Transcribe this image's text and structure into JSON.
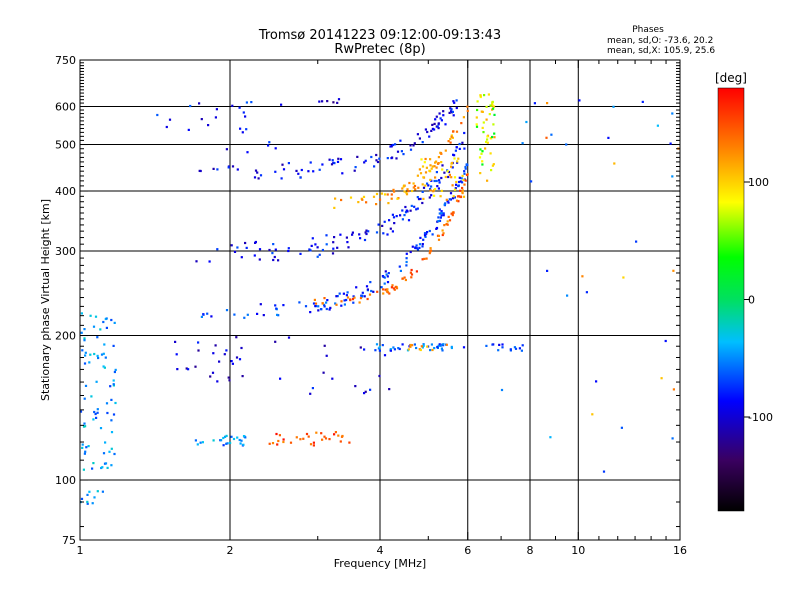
{
  "header": {
    "title_line1": "Tromsø 20141223 09:12:00-09:13:43",
    "title_line2": "RwPretec (8p)"
  },
  "phases_box": {
    "heading": "Phases",
    "line_o": "mean, sd,O: -73.6, 20.2",
    "line_x": "mean, sd,X: 105.9, 25.6"
  },
  "colorbar": {
    "unit_label": "[deg]",
    "ticks": [
      {
        "value": 100,
        "label": "100"
      },
      {
        "value": 0,
        "label": "0"
      },
      {
        "value": -100,
        "label": "-100"
      }
    ],
    "range": [
      -180,
      180
    ]
  },
  "chart_data": {
    "type": "scatter",
    "title": "Tromsø 20141223 09:12:00-09:13:43",
    "subtitle": "RwPretec (8p)",
    "xlabel": "Frequency [MHz]",
    "ylabel": "Stationary phase Virtual Height [km]",
    "x_scale": "log",
    "y_scale": "log",
    "xlim": [
      1,
      16
    ],
    "ylim": [
      75,
      750
    ],
    "x_ticks": [
      {
        "value": 1,
        "label": "1"
      },
      {
        "value": 2,
        "label": "2"
      },
      {
        "value": 4,
        "label": "4"
      },
      {
        "value": 6,
        "label": "6"
      },
      {
        "value": 8,
        "label": "8"
      },
      {
        "value": 10,
        "label": "10"
      },
      {
        "value": 16,
        "label": "16"
      }
    ],
    "y_ticks": [
      {
        "value": 75,
        "label": "75"
      },
      {
        "value": 100,
        "label": "100"
      },
      {
        "value": 200,
        "label": "200"
      },
      {
        "value": 300,
        "label": "300"
      },
      {
        "value": 400,
        "label": "400"
      },
      {
        "value": 500,
        "label": "500"
      },
      {
        "value": 600,
        "label": "600"
      },
      {
        "value": 750,
        "label": "750"
      }
    ],
    "x_grid": [
      2,
      4,
      6,
      8,
      10
    ],
    "y_grid": [
      100,
      200,
      300,
      400,
      500,
      600
    ],
    "color_encodes": "phase [deg]",
    "traces": [
      {
        "x0": 1.7,
        "x1": 6.0,
        "h0": 225,
        "h1": 450,
        "phase": -75,
        "spread": 0.035,
        "n": 140
      },
      {
        "x0": 2.9,
        "x1": 6.0,
        "h0": 235,
        "h1": 430,
        "phase": 140,
        "spread": 0.02,
        "n": 80
      },
      {
        "x0": 1.7,
        "x1": 6.0,
        "h0": 300,
        "h1": 520,
        "phase": -85,
        "spread": 0.05,
        "n": 120
      },
      {
        "x0": 1.7,
        "x1": 5.8,
        "h0": 440,
        "h1": 620,
        "phase": -90,
        "spread": 0.04,
        "n": 100
      },
      {
        "x0": 3.2,
        "x1": 6.0,
        "h0": 380,
        "h1": 600,
        "phase": 120,
        "spread": 0.03,
        "n": 70
      }
    ],
    "clusters": [
      {
        "x": [
          1.0,
          1.18
        ],
        "y": [
          105,
          225
        ],
        "phase": -45,
        "n": 80
      },
      {
        "x": [
          1.0,
          1.12
        ],
        "y": [
          88,
          95
        ],
        "phase": -40,
        "n": 10
      },
      {
        "x": [
          1.7,
          2.2
        ],
        "y": [
          118,
          124
        ],
        "phase": -50,
        "n": 25
      },
      {
        "x": [
          2.4,
          3.5
        ],
        "y": [
          118,
          126
        ],
        "phase": 150,
        "n": 30
      },
      {
        "x": [
          1.5,
          2.2
        ],
        "y": [
          160,
          205
        ],
        "phase": -100,
        "n": 25
      },
      {
        "x": [
          3.9,
          5.9
        ],
        "y": [
          186,
          192
        ],
        "phase": -60,
        "n": 40
      },
      {
        "x": [
          4.5,
          5.5
        ],
        "y": [
          186,
          192
        ],
        "phase": 110,
        "n": 10
      },
      {
        "x": [
          6.5,
          7.8
        ],
        "y": [
          186,
          192
        ],
        "phase": -75,
        "n": 14
      },
      {
        "x": [
          2.4,
          4.2
        ],
        "y": [
          150,
          200
        ],
        "phase": -95,
        "n": 18
      },
      {
        "x": [
          4.8,
          5.9
        ],
        "y": [
          380,
          470
        ],
        "phase": 105,
        "n": 45
      },
      {
        "x": [
          6.2,
          6.8
        ],
        "y": [
          420,
          640
        ],
        "phase": 95,
        "n": 40
      },
      {
        "x": [
          6.2,
          6.8
        ],
        "y": [
          420,
          640
        ],
        "phase": 40,
        "n": 12
      },
      {
        "x": [
          1.4,
          2.6
        ],
        "y": [
          480,
          620
        ],
        "phase": -85,
        "n": 25
      },
      {
        "x": [
          3.0,
          3.4
        ],
        "y": [
          610,
          625
        ],
        "phase": -120,
        "n": 6
      },
      {
        "x": [
          7.0,
          16.0
        ],
        "y": [
          100,
          650
        ],
        "phase": -60,
        "n": 25
      },
      {
        "x": [
          7.0,
          16.0
        ],
        "y": [
          100,
          650
        ],
        "phase": 120,
        "n": 10
      }
    ]
  }
}
